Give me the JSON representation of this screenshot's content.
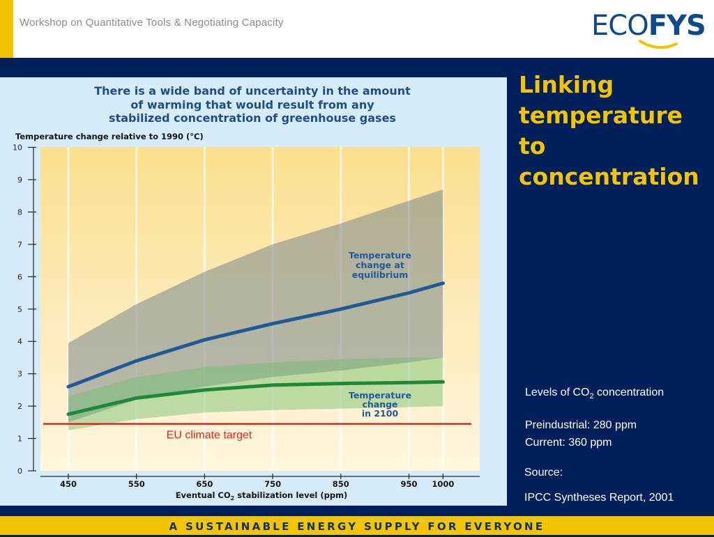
{
  "header": {
    "workshop_title": "Workshop on Quantitative Tools & Negotiating Capacity",
    "logo_eco": "ECO",
    "logo_fys": "FYS"
  },
  "sidebar": {
    "title_lines": [
      "Linking",
      "temperature",
      "to",
      "concentration"
    ],
    "levels_prefix": "Levels of CO",
    "levels_sub": "2",
    "levels_suffix": " concentration",
    "preindustrial": "Preindustrial: 280 ppm",
    "current": "Current: 360 ppm",
    "source_label": "Source:",
    "source": "IPCC Syntheses Report, 2001"
  },
  "footer": {
    "tagline": "A SUSTAINABLE ENERGY SUPPLY FOR EVERYONE"
  },
  "colors": {
    "background": "#00205B",
    "accent_yellow": "#F5C400",
    "equilibrium_line": "#1f5a96",
    "year2100_line": "#1b8a3c",
    "eu_target_line": "#e02020"
  },
  "chart_data": {
    "type": "line",
    "title_lines": [
      "There is a wide band of uncertainty in the amount",
      "of warming that would result from any",
      "stabilized concentration of greenhouse gases"
    ],
    "ylabel": "Temperature change relative to 1990 (°C)",
    "xlabel_prefix": "Eventual CO",
    "xlabel_sub": "2",
    "xlabel_suffix": " stabilization level (ppm)",
    "x": [
      450,
      550,
      650,
      750,
      850,
      950,
      1000
    ],
    "x_ticks": [
      "450",
      "550",
      "650",
      "750",
      "850",
      "950",
      "1000"
    ],
    "y_ticks": [
      "0",
      "1",
      "2",
      "3",
      "4",
      "5",
      "6",
      "7",
      "8",
      "9",
      "10"
    ],
    "xlim": [
      420,
      1080
    ],
    "ylim": [
      0,
      10
    ],
    "grid": true,
    "series": [
      {
        "name": "Temperature change at equilibrium",
        "label_lines": [
          "Temperature",
          "change at",
          "equilibrium"
        ],
        "x": [
          450,
          550,
          650,
          750,
          850,
          950,
          1000
        ],
        "values": [
          2.6,
          3.4,
          4.05,
          4.55,
          5.0,
          5.5,
          5.8
        ],
        "band_low": [
          1.5,
          2.2,
          2.6,
          2.9,
          3.1,
          3.35,
          3.5
        ],
        "band_high": [
          3.95,
          5.15,
          6.15,
          7.0,
          7.65,
          8.35,
          8.7
        ]
      },
      {
        "name": "Temperature change in 2100",
        "label_lines": [
          "Temperature",
          "change",
          "in 2100"
        ],
        "x": [
          450,
          550,
          650,
          750,
          850,
          950,
          1000
        ],
        "values": [
          1.75,
          2.25,
          2.5,
          2.65,
          2.7,
          2.73,
          2.75
        ],
        "band_low": [
          1.25,
          1.6,
          1.8,
          1.88,
          1.92,
          1.97,
          2.0
        ],
        "band_high": [
          2.3,
          2.9,
          3.2,
          3.35,
          3.45,
          3.5,
          3.5
        ]
      }
    ],
    "annotations": [
      {
        "text": "EU climate target",
        "y": 1.45
      }
    ]
  }
}
